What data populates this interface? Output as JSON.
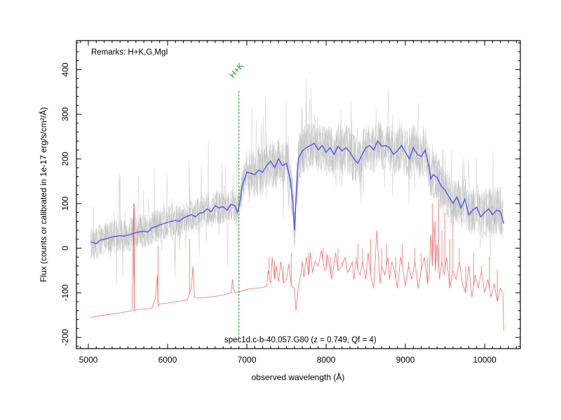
{
  "chart_data": {
    "type": "line",
    "xlabel": "observed wavelength (Å)",
    "ylabel": "Flux (counts or calibrated in 1e-17 erg/s/cm²/Å)",
    "xlim": [
      4850,
      10450
    ],
    "ylim": [
      -225,
      465
    ],
    "xticks": [
      5000,
      6000,
      7000,
      8000,
      9000,
      10000
    ],
    "yticks": [
      -200,
      -100,
      0,
      100,
      200,
      300,
      400
    ],
    "remarks": "Remarks: H+K,G,MgI",
    "caption": "spec1d.c-b-40.057.G80 (z = 0.749, Qf = 4)",
    "marker": {
      "label": "H+K",
      "x": 6900,
      "y_top": 352,
      "color": "#1a9a1a"
    },
    "colors": {
      "smoothed": "#5555ee",
      "raw": "#b8b8b8",
      "error": "#f07070",
      "marker": "#1a9a1a",
      "frame": "#000000"
    },
    "series": [
      {
        "key": "smoothed",
        "x": [
          5030,
          5100,
          5150,
          5200,
          5300,
          5400,
          5450,
          5500,
          5600,
          5700,
          5750,
          5800,
          5900,
          6000,
          6100,
          6150,
          6200,
          6300,
          6350,
          6400,
          6450,
          6500,
          6550,
          6600,
          6650,
          6700,
          6750,
          6800,
          6850,
          6880,
          6900,
          6920,
          6940,
          6960,
          6980,
          7000,
          7050,
          7100,
          7150,
          7200,
          7250,
          7300,
          7350,
          7400,
          7450,
          7500,
          7550,
          7580,
          7600,
          7620,
          7650,
          7700,
          7750,
          7800,
          7850,
          7900,
          7950,
          8000,
          8050,
          8100,
          8150,
          8200,
          8250,
          8300,
          8350,
          8400,
          8450,
          8500,
          8550,
          8600,
          8650,
          8700,
          8750,
          8800,
          8850,
          8900,
          8950,
          9000,
          9050,
          9100,
          9150,
          9200,
          9250,
          9300,
          9320,
          9350,
          9400,
          9450,
          9500,
          9550,
          9600,
          9650,
          9700,
          9750,
          9800,
          9850,
          9900,
          9950,
          10000,
          10050,
          10100,
          10150,
          10200,
          10240
        ],
        "y": [
          14,
          10,
          18,
          20,
          25,
          28,
          27,
          29,
          35,
          38,
          36,
          45,
          52,
          58,
          62,
          60,
          68,
          75,
          70,
          78,
          80,
          88,
          82,
          95,
          90,
          93,
          85,
          98,
          95,
          80,
          92,
          110,
          140,
          150,
          160,
          170,
          168,
          165,
          175,
          170,
          185,
          195,
          180,
          200,
          185,
          190,
          150,
          105,
          40,
          110,
          200,
          218,
          225,
          230,
          235,
          220,
          230,
          215,
          225,
          210,
          228,
          218,
          225,
          215,
          200,
          190,
          208,
          225,
          230,
          220,
          240,
          228,
          230,
          225,
          210,
          218,
          230,
          215,
          200,
          225,
          210,
          205,
          220,
          180,
          155,
          165,
          158,
          140,
          130,
          115,
          100,
          115,
          90,
          110,
          75,
          85,
          92,
          70,
          80,
          88,
          75,
          85,
          82,
          55
        ]
      },
      {
        "key": "error",
        "x": [
          5030,
          5200,
          5400,
          5550,
          5560,
          5570,
          5580,
          5600,
          5800,
          5850,
          5870,
          5880,
          5890,
          5900,
          6000,
          6100,
          6200,
          6250,
          6300,
          6320,
          6340,
          6400,
          6500,
          6600,
          6700,
          6800,
          6820,
          6830,
          6850,
          6900,
          6950,
          7000,
          7100,
          7200,
          7250,
          7270,
          7300,
          7320,
          7350,
          7370,
          7400,
          7430,
          7460,
          7500,
          7530,
          7560,
          7600,
          7620,
          7650,
          7680,
          7700,
          7720,
          7750,
          7780,
          7800,
          7830,
          7860,
          7900,
          7940,
          7980,
          8000,
          8020,
          8040,
          8070,
          8100,
          8120,
          8150,
          8200,
          8240,
          8270,
          8300,
          8330,
          8350,
          8380,
          8400,
          8430,
          8460,
          8500,
          8530,
          8560,
          8600,
          8640,
          8680,
          8700,
          8740,
          8780,
          8800,
          8830,
          8860,
          8900,
          8940,
          8980,
          9000,
          9040,
          9080,
          9120,
          9160,
          9200,
          9240,
          9280,
          9300,
          9320,
          9340,
          9360,
          9380,
          9400,
          9430,
          9460,
          9490,
          9520,
          9560,
          9600,
          9640,
          9680,
          9720,
          9760,
          9800,
          9840,
          9880,
          9920,
          9960,
          10000,
          10040,
          10080,
          10120,
          10160,
          10200,
          10230,
          10240
        ],
        "y": [
          -155,
          -150,
          -145,
          -140,
          -60,
          100,
          -140,
          -138,
          -135,
          -110,
          -60,
          -130,
          -128,
          -125,
          -123,
          -120,
          -118,
          -115,
          -90,
          -40,
          -110,
          -112,
          -110,
          -108,
          -105,
          -100,
          -70,
          -90,
          -100,
          -98,
          -95,
          -92,
          -90,
          -88,
          -85,
          -50,
          -80,
          -20,
          -70,
          -40,
          -75,
          -30,
          -78,
          -70,
          -35,
          -85,
          -90,
          -140,
          -85,
          -60,
          -30,
          -65,
          -20,
          -60,
          -10,
          -55,
          -30,
          -40,
          -5,
          -50,
          -45,
          -15,
          -40,
          -70,
          -35,
          -10,
          -50,
          -40,
          -20,
          -55,
          -45,
          -30,
          -70,
          -25,
          -50,
          -60,
          -30,
          -70,
          -10,
          -60,
          -90,
          40,
          -80,
          -40,
          -60,
          -20,
          -70,
          -30,
          -50,
          -90,
          -20,
          -60,
          -85,
          -40,
          -70,
          -30,
          -90,
          -50,
          -20,
          -80,
          -60,
          30,
          -40,
          60,
          -50,
          10,
          -70,
          -30,
          -60,
          -20,
          -90,
          -50,
          -70,
          -30,
          -80,
          -100,
          -40,
          -110,
          -60,
          -90,
          -50,
          -100,
          -70,
          -110,
          -80,
          -120,
          -90,
          -100,
          -185
        ]
      }
    ],
    "error_spikes": [
      {
        "x": 5580,
        "y": 100
      },
      {
        "x": 5880,
        "y": 5
      },
      {
        "x": 6280,
        "y": 20
      },
      {
        "x": 7280,
        "y": -20
      },
      {
        "x": 7350,
        "y": -30
      },
      {
        "x": 7460,
        "y": -40
      },
      {
        "x": 7560,
        "y": -10
      },
      {
        "x": 7700,
        "y": -30
      },
      {
        "x": 7780,
        "y": -10
      },
      {
        "x": 7960,
        "y": 0
      },
      {
        "x": 8000,
        "y": -10
      },
      {
        "x": 8060,
        "y": -20
      },
      {
        "x": 8150,
        "y": 0
      },
      {
        "x": 8200,
        "y": -30
      },
      {
        "x": 8380,
        "y": -20
      },
      {
        "x": 8400,
        "y": 10
      },
      {
        "x": 8460,
        "y": 0
      },
      {
        "x": 8520,
        "y": -30
      },
      {
        "x": 8560,
        "y": 20
      },
      {
        "x": 8640,
        "y": 40
      },
      {
        "x": 8700,
        "y": 0
      },
      {
        "x": 8760,
        "y": 10
      },
      {
        "x": 8880,
        "y": -20
      },
      {
        "x": 8960,
        "y": 10
      },
      {
        "x": 9040,
        "y": -30
      },
      {
        "x": 9120,
        "y": 0
      },
      {
        "x": 9200,
        "y": -10
      },
      {
        "x": 9280,
        "y": -20
      },
      {
        "x": 9340,
        "y": 100
      },
      {
        "x": 9380,
        "y": 60
      },
      {
        "x": 9420,
        "y": 110
      },
      {
        "x": 9460,
        "y": 40
      },
      {
        "x": 9500,
        "y": 80
      },
      {
        "x": 9560,
        "y": 20
      },
      {
        "x": 9600,
        "y": 60
      },
      {
        "x": 9680,
        "y": 0
      },
      {
        "x": 9760,
        "y": -40
      },
      {
        "x": 9860,
        "y": -10
      },
      {
        "x": 9960,
        "y": -40
      },
      {
        "x": 10060,
        "y": -20
      },
      {
        "x": 10160,
        "y": -50
      }
    ],
    "grid": false,
    "legend": "none"
  }
}
